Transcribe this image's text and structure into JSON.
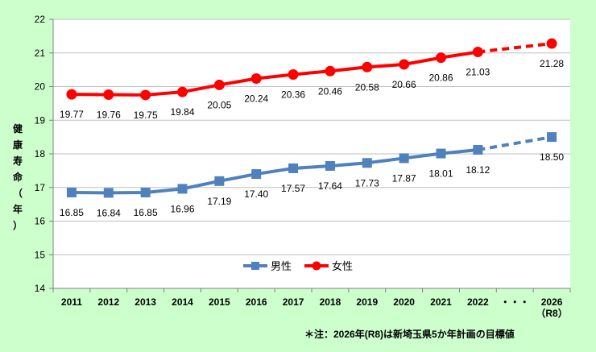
{
  "chart_data": {
    "type": "line",
    "title": "",
    "ylabel_chars": [
      "健",
      "康",
      "寿",
      "命",
      "（",
      "年",
      "）"
    ],
    "ylim": [
      14,
      22
    ],
    "yticks": [
      "14",
      "15",
      "16",
      "17",
      "18",
      "19",
      "20",
      "21",
      "22"
    ],
    "categories": [
      "2011",
      "2012",
      "2013",
      "2014",
      "2015",
      "2016",
      "2017",
      "2018",
      "2019",
      "2020",
      "2021",
      "2022",
      "・・・",
      "2026"
    ],
    "category_sub": "（R8）",
    "series": [
      {
        "name": "男性",
        "color": "#4f81bd",
        "marker": "square",
        "values": [
          16.85,
          16.84,
          16.85,
          16.96,
          17.19,
          17.4,
          17.57,
          17.64,
          17.73,
          17.87,
          18.01,
          18.12,
          null,
          18.5
        ],
        "labels": [
          "16.85",
          "16.84",
          "16.85",
          "16.96",
          "17.19",
          "17.40",
          "17.57",
          "17.64",
          "17.73",
          "17.87",
          "18.01",
          "18.12",
          "",
          "18.50"
        ]
      },
      {
        "name": "女性",
        "color": "#ff0000",
        "marker": "circle",
        "values": [
          19.77,
          19.76,
          19.75,
          19.84,
          20.05,
          20.24,
          20.36,
          20.46,
          20.58,
          20.66,
          20.86,
          21.03,
          null,
          21.28
        ],
        "labels": [
          "19.77",
          "19.76",
          "19.75",
          "19.84",
          "20.05",
          "20.24",
          "20.36",
          "20.46",
          "20.58",
          "20.66",
          "20.86",
          "21.03",
          "",
          "21.28"
        ]
      }
    ],
    "target_note": "＊注：2026年(R8)は新埼玉県5か年計画の目標値"
  }
}
